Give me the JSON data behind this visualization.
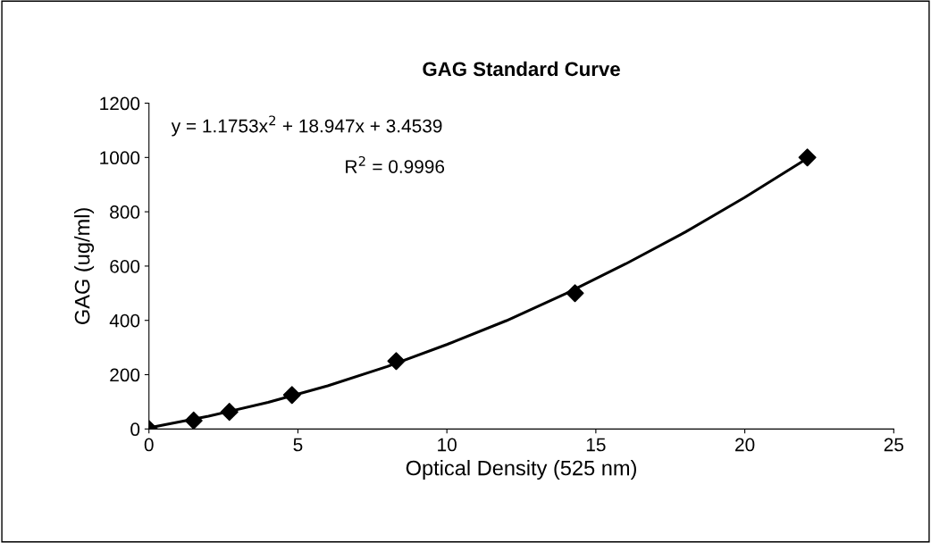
{
  "chart_data": {
    "type": "scatter",
    "title": "GAG Standard Curve",
    "xlabel": "Optical Density (525 nm)",
    "ylabel": "GAG (ug/ml)",
    "xlim": [
      0,
      25
    ],
    "xticks": [
      0,
      5,
      10,
      15,
      20,
      25
    ],
    "ylim": [
      0,
      1200
    ],
    "yticks": [
      0,
      200,
      400,
      600,
      800,
      1000,
      1200
    ],
    "grid": false,
    "legend": false,
    "annotations": [
      "y = 1.1753x$^{2}$ + 18.947x + 3.4539",
      "R$^{2}$ = 0.9996"
    ],
    "series": [
      {
        "type": "line",
        "color": "#000000",
        "marker": "none",
        "line_style": "solid",
        "x": [
          0,
          2,
          4,
          6,
          8,
          10,
          12,
          14,
          16,
          18,
          20,
          22.1
        ],
        "values": [
          4,
          47,
          98,
          159,
          230,
          311,
          399,
          499,
          608,
          725,
          853,
          997
        ]
      },
      {
        "color": "#000000",
        "marker": "diamond",
        "x": [
          0,
          1.5,
          2.7,
          4.8,
          8.3,
          14.3,
          22.1
        ],
        "values": [
          0,
          31,
          63,
          125,
          250,
          500,
          1000
        ]
      }
    ]
  }
}
